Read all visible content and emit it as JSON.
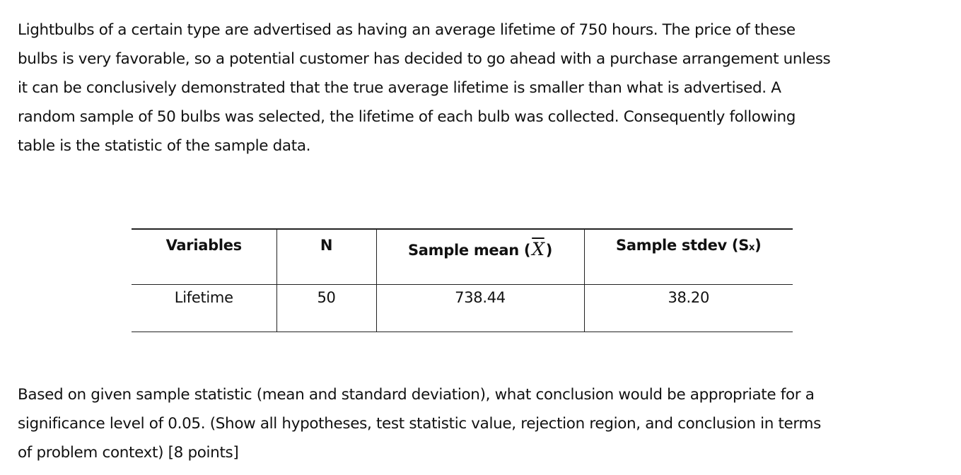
{
  "intro": {
    "lines": [
      "Lightbulbs of a certain type are advertised as having an average lifetime of 750 hours. The price of these",
      "bulbs is very favorable, so a potential customer has decided to go ahead with a purchase arrangement unless",
      "it can be conclusively demonstrated that the true average lifetime is smaller than what is advertised. A",
      "random sample of 50 bulbs was selected, the lifetime of each bulb was collected. Consequently following",
      "table is the statistic of the sample data."
    ]
  },
  "table": {
    "headers": {
      "variables": "Variables",
      "n": "N",
      "mean_prefix": "Sample mean (",
      "mean_symbol": "X",
      "mean_suffix": ")",
      "stdev_prefix": "Sample stdev (S",
      "stdev_sub": "x",
      "stdev_suffix": ")"
    },
    "rows": [
      {
        "variable": "Lifetime",
        "n": "50",
        "mean": "738.44",
        "stdev": "38.20"
      }
    ]
  },
  "question": {
    "lines": [
      "Based on given sample statistic (mean and standard deviation), what conclusion would be appropriate for a",
      "significance level of 0.05. (Show all hypotheses, test statistic value, rejection region, and conclusion in terms",
      "of problem context)"
    ],
    "points": "[8 points]"
  }
}
